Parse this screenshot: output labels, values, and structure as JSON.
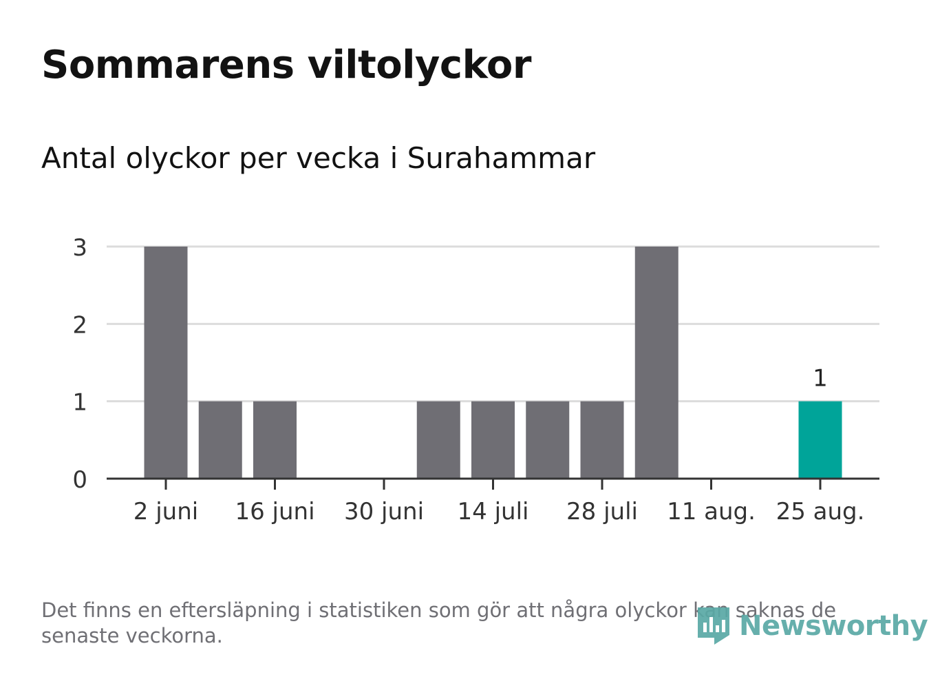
{
  "title": "Sommarens viltolyckor",
  "subtitle": "Antal olyckor per vecka i Surahammar",
  "note": "Det finns en eftersläpning i statistiken som gör att några olyckor kan saknas de senaste veckorna.",
  "brand": "Newsworthy",
  "colors": {
    "bar": "#6f6e74",
    "highlight": "#00a499",
    "grid": "#dcdcdc",
    "axis": "#333333",
    "text": "#333333",
    "brand": "#5aa9a5"
  },
  "chart_data": {
    "type": "bar",
    "categories": [
      "2 juni",
      "9 juni",
      "16 juni",
      "23 juni",
      "30 juni",
      "7 juli",
      "14 juli",
      "21 juli",
      "28 juli",
      "4 aug.",
      "11 aug.",
      "18 aug.",
      "25 aug."
    ],
    "tick_labels": [
      "2 juni",
      "16 juni",
      "30 juni",
      "14 juli",
      "28 juli",
      "11 aug.",
      "25 aug."
    ],
    "values": [
      3,
      1,
      1,
      0,
      0,
      1,
      1,
      1,
      1,
      3,
      0,
      0,
      1
    ],
    "highlight_index": 12,
    "highlight_label": "1",
    "yticks": [
      0,
      1,
      2,
      3
    ],
    "ylim": [
      0,
      3
    ],
    "grid": true,
    "legend": "none"
  }
}
